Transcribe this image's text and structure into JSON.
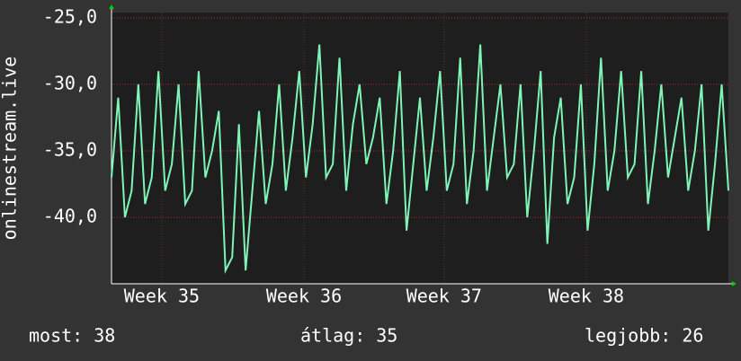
{
  "chart_data": {
    "type": "line",
    "ylabel": "onlinestream.live",
    "ylim": [
      -45,
      -24.6
    ],
    "yticks": [
      {
        "value": -25,
        "label": "-25,0"
      },
      {
        "value": -30,
        "label": "-30,0"
      },
      {
        "value": -35,
        "label": "-35,0"
      },
      {
        "value": -40,
        "label": "-40,0"
      }
    ],
    "xlim": [
      0,
      92
    ],
    "xticks": [
      {
        "value": 7.5,
        "label": "Week 35"
      },
      {
        "value": 28.7,
        "label": "Week 36"
      },
      {
        "value": 49.6,
        "label": "Week 37"
      },
      {
        "value": 70.8,
        "label": "Week 38"
      }
    ],
    "grid": true,
    "series": [
      {
        "color": "#7ef5b6",
        "values": [
          -37,
          -31,
          -40,
          -38,
          -30,
          -39,
          -37,
          -29,
          -38,
          -36,
          -30,
          -39,
          -38,
          -29,
          -37,
          -35,
          -32,
          -44,
          -43,
          -33,
          -44,
          -38,
          -32,
          -39,
          -36,
          -30,
          -38,
          -34,
          -29,
          -37,
          -33,
          -27,
          -37,
          -36,
          -28,
          -38,
          -33,
          -30,
          -36,
          -34,
          -31,
          -39,
          -35,
          -29,
          -41,
          -36,
          -31,
          -38,
          -34,
          -29,
          -38,
          -36,
          -28,
          -39,
          -35,
          -27,
          -38,
          -34,
          -30,
          -37,
          -36,
          -30,
          -40,
          -35,
          -29,
          -42,
          -34,
          -31,
          -39,
          -37,
          -30,
          -41,
          -36,
          -28,
          -38,
          -35,
          -29,
          -37,
          -36,
          -29,
          -39,
          -35,
          -30,
          -37,
          -34,
          -31,
          -38,
          -35,
          -30,
          -41,
          -36,
          -30,
          -38
        ]
      }
    ],
    "stats": [
      {
        "label": "most:",
        "value": 38
      },
      {
        "label": "átlag:",
        "value": 35
      },
      {
        "label": "legjobb:",
        "value": 26
      }
    ]
  }
}
